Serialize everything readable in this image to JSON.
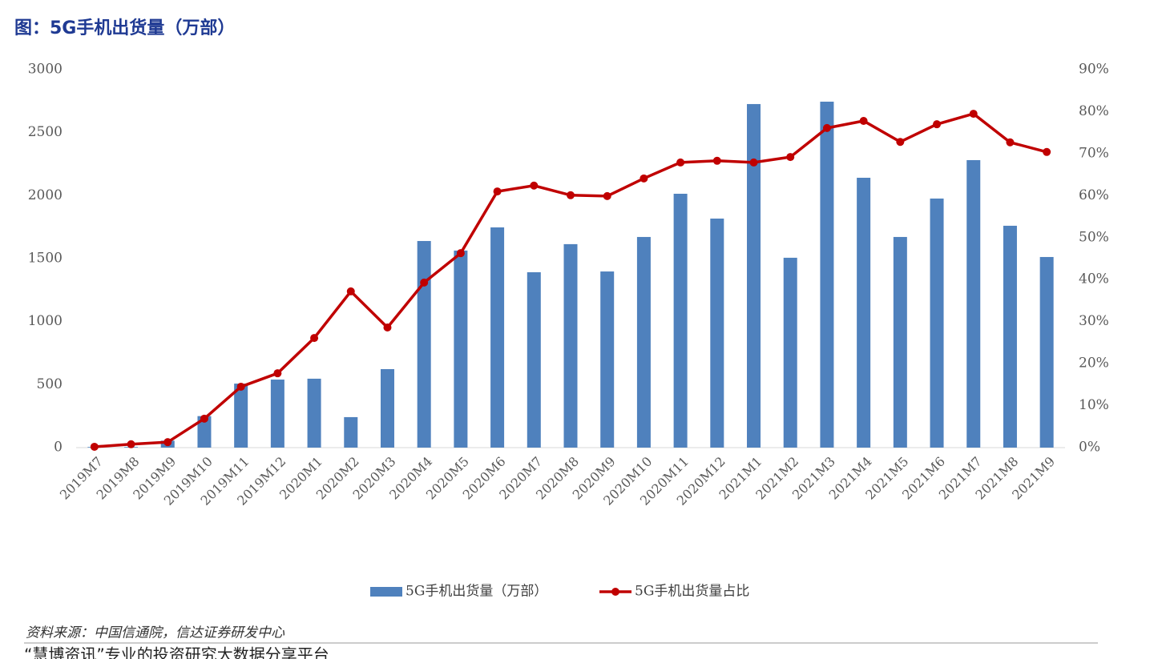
{
  "chart_data": {
    "type": "bar-line",
    "title": "图：5G手机出货量（万部）",
    "categories": [
      "2019M7",
      "2019M8",
      "2019M9",
      "2019M10",
      "2019M11",
      "2019M12",
      "2020M1",
      "2020M2",
      "2020M3",
      "2020M4",
      "2020M5",
      "2020M6",
      "2020M7",
      "2020M8",
      "2020M9",
      "2020M10",
      "2020M11",
      "2020M12",
      "2021M1",
      "2021M2",
      "2021M3",
      "2021M4",
      "2021M5",
      "2021M6",
      "2021M7",
      "2021M8",
      "2021M9"
    ],
    "series": [
      {
        "name": "5G手机出货量（万部）",
        "type": "bar",
        "color": "#4f81bd",
        "values": [
          5,
          5,
          55,
          250,
          508,
          540,
          547,
          242,
          623,
          1640,
          1564,
          1748,
          1392,
          1615,
          1398,
          1672,
          2015,
          1818,
          2727,
          1507,
          2746,
          2142,
          1672,
          1977,
          2282,
          1761,
          1513
        ]
      },
      {
        "name": "5G手机出货量占比",
        "type": "line",
        "axis": "y2",
        "color": "#c00000",
        "values": [
          0.2,
          0.8,
          1.3,
          6.9,
          14.5,
          17.7,
          26.1,
          37.2,
          28.6,
          39.3,
          46.3,
          61.0,
          62.4,
          60.1,
          59.9,
          64.1,
          67.9,
          68.3,
          67.9,
          69.2,
          76.1,
          77.8,
          72.8,
          77.0,
          79.5,
          72.7,
          70.4
        ]
      }
    ],
    "ylim": [
      0,
      3000
    ],
    "yticks": [
      0,
      500,
      1000,
      1500,
      2000,
      2500,
      3000
    ],
    "y2lim": [
      0,
      90
    ],
    "y2ticks": [
      {
        "value": 0,
        "label": "0%"
      },
      {
        "value": 10,
        "label": "10%"
      },
      {
        "value": 20,
        "label": "20%"
      },
      {
        "value": 30,
        "label": "30%"
      },
      {
        "value": 40,
        "label": "40%"
      },
      {
        "value": 50,
        "label": "50%"
      },
      {
        "value": 60,
        "label": "60%"
      },
      {
        "value": 70,
        "label": "70%"
      },
      {
        "value": 80,
        "label": "80%"
      },
      {
        "value": 90,
        "label": "90%"
      }
    ],
    "legend": "bottom",
    "source": "资料来源：中国信通院，信达证券研发中心",
    "footer": "“慧博资讯”专业的投资研究大数据分享平台"
  }
}
